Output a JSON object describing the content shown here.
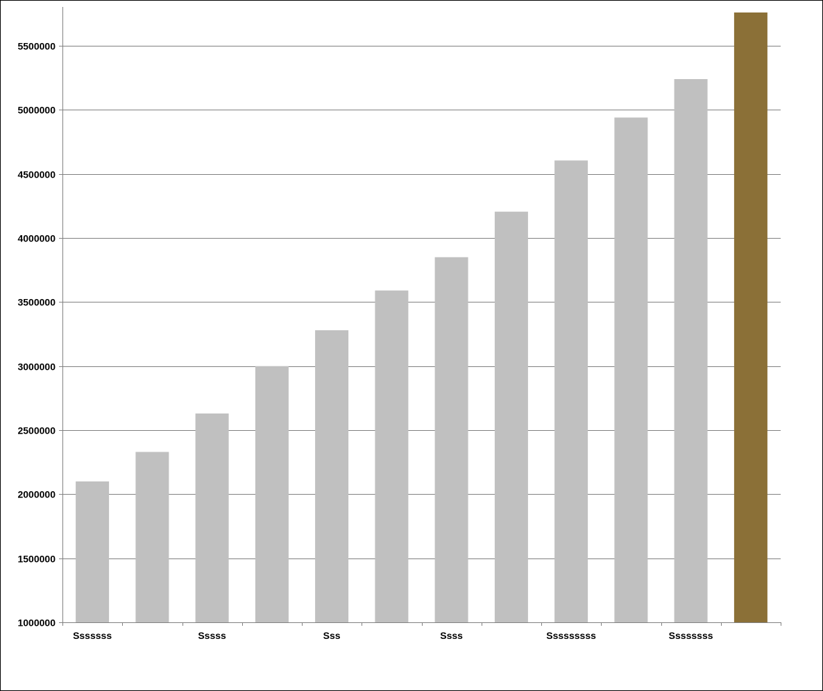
{
  "chart_data": {
    "type": "bar",
    "title": "",
    "xlabel": "",
    "ylabel": "",
    "ylim": [
      1000000,
      5800000
    ],
    "yticks": [
      1000000,
      1500000,
      2000000,
      2500000,
      3000000,
      3500000,
      4000000,
      4500000,
      5000000,
      5500000
    ],
    "ytick_labels": [
      "1000000",
      "1500000",
      "2000000",
      "2500000",
      "3000000",
      "3500000",
      "4000000",
      "4500000",
      "5000000",
      "5500000"
    ],
    "grid": true,
    "legend": "none",
    "categories": [
      "Sssssss",
      "",
      "Sssss",
      "",
      "Sss",
      "",
      "Ssss",
      "",
      "Sssssssss",
      "",
      "Ssssssss",
      ""
    ],
    "values": [
      2100000,
      2330000,
      2630000,
      3000000,
      3280000,
      3590000,
      3850000,
      4205000,
      4605000,
      4940000,
      5240000,
      5760000
    ],
    "bar_colors": [
      "#c0c0c0",
      "#c0c0c0",
      "#c0c0c0",
      "#c0c0c0",
      "#c0c0c0",
      "#c0c0c0",
      "#c0c0c0",
      "#c0c0c0",
      "#c0c0c0",
      "#c0c0c0",
      "#c0c0c0",
      "#8b7037"
    ],
    "colors": {
      "grid": "#808080",
      "axis": "#808080",
      "text": "#000000",
      "default_bar": "#c0c0c0",
      "highlight_bar": "#8b7037"
    }
  }
}
